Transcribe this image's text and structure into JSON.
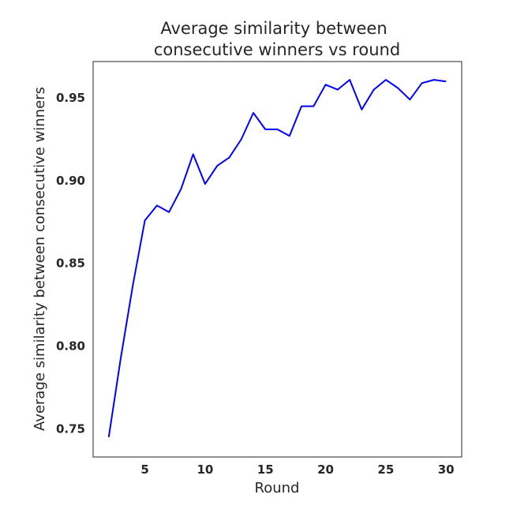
{
  "chart_data": {
    "type": "line",
    "title": [
      "Average similarity between",
      "consecutive winners vs round"
    ],
    "xlabel": "Round",
    "ylabel": "Average similarity between consecutive winners",
    "xlim": [
      0.7,
      31.3
    ],
    "ylim": [
      0.733,
      0.972
    ],
    "xticks": [
      5,
      10,
      15,
      20,
      25,
      30
    ],
    "xtick_labels": [
      "5",
      "10",
      "15",
      "20",
      "25",
      "30"
    ],
    "yticks": [
      0.75,
      0.8,
      0.85,
      0.9,
      0.95
    ],
    "ytick_labels": [
      "0.75",
      "0.80",
      "0.85",
      "0.90",
      "0.95"
    ],
    "grid": false,
    "series": [
      {
        "color": "#0000ff",
        "x": [
          2,
          3,
          4,
          5,
          6,
          7,
          8,
          9,
          10,
          11,
          12,
          13,
          14,
          15,
          16,
          17,
          18,
          19,
          20,
          21,
          22,
          23,
          24,
          25,
          26,
          27,
          28,
          29,
          30
        ],
        "y": [
          0.745,
          0.793,
          0.837,
          0.876,
          0.885,
          0.881,
          0.895,
          0.916,
          0.898,
          0.909,
          0.914,
          0.925,
          0.941,
          0.931,
          0.931,
          0.927,
          0.945,
          0.945,
          0.958,
          0.955,
          0.961,
          0.943,
          0.955,
          0.961,
          0.956,
          0.949,
          0.959,
          0.961,
          0.96
        ]
      }
    ]
  }
}
